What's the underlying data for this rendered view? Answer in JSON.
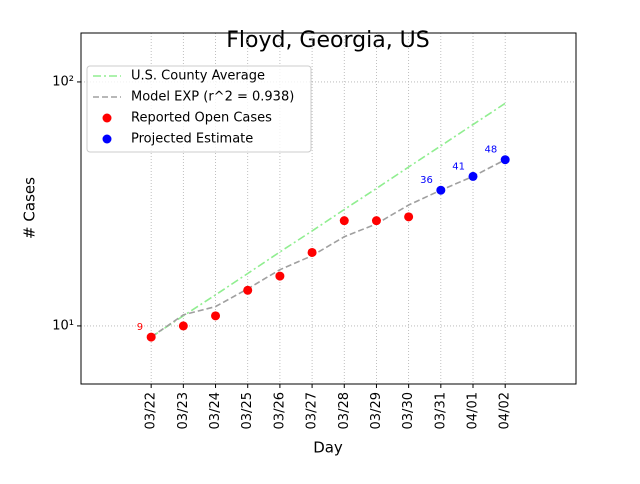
{
  "chart_data": {
    "type": "line",
    "title": "Floyd, Georgia, US",
    "x_label": "Day",
    "y_label": "# Cases",
    "categories": [
      "03/22",
      "03/23",
      "03/24",
      "03/25",
      "03/26",
      "03/27",
      "03/28",
      "03/29",
      "03/30",
      "03/31",
      "04/01",
      "04/02"
    ],
    "xlim": [
      -2.18,
      13.2
    ],
    "y_scale": "log",
    "ylim": [
      5.78,
      158.7
    ],
    "yticks": [
      {
        "value": 10,
        "label": "10¹"
      },
      {
        "value": 100,
        "label": "10²"
      }
    ],
    "grid": true,
    "legend_position": "upper-left",
    "series": [
      {
        "name": "U.S. County Average",
        "color": "#90ee90",
        "style": "dashdot",
        "values": [
          9,
          11.0,
          13.4,
          16.4,
          20.1,
          24.5,
          30.0,
          36.6,
          44.8,
          54.7,
          66.9,
          81.7
        ]
      },
      {
        "name": "Model EXP (r^2 = 0.938)",
        "color": "#a0a0a0",
        "style": "dashed",
        "values": [
          9,
          11.1,
          12,
          14.2,
          17,
          19.4,
          23.2,
          26.2,
          31.3,
          36,
          41,
          48
        ]
      },
      {
        "name": "Reported Open Cases",
        "color": "#ff0000",
        "style": "marker",
        "values": [
          9,
          10,
          11,
          14,
          16,
          20,
          27,
          27,
          28,
          null,
          null,
          null
        ]
      },
      {
        "name": "Projected Estimate",
        "color": "#0000ff",
        "style": "marker",
        "values": [
          null,
          null,
          null,
          null,
          null,
          null,
          null,
          null,
          null,
          36,
          41,
          48
        ]
      }
    ]
  }
}
